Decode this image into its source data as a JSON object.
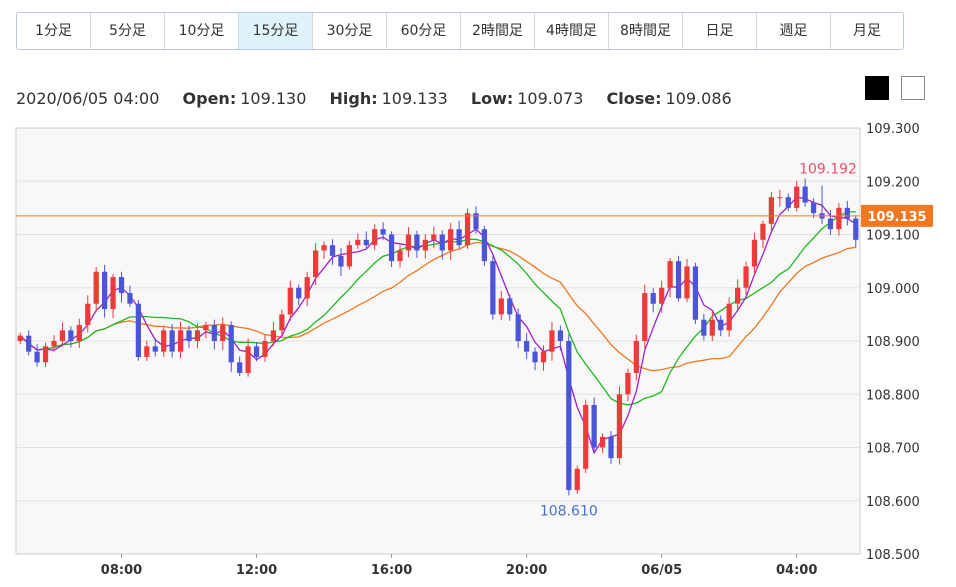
{
  "timeframes": [
    {
      "label": "1分足",
      "active": false
    },
    {
      "label": "5分足",
      "active": false
    },
    {
      "label": "10分足",
      "active": false
    },
    {
      "label": "15分足",
      "active": true
    },
    {
      "label": "30分足",
      "active": false
    },
    {
      "label": "60分足",
      "active": false
    },
    {
      "label": "2時間足",
      "active": false
    },
    {
      "label": "4時間足",
      "active": false
    },
    {
      "label": "8時間足",
      "active": false
    },
    {
      "label": "日足",
      "active": false
    },
    {
      "label": "週足",
      "active": false
    },
    {
      "label": "月足",
      "active": false
    }
  ],
  "ohlc": {
    "datetime": "2020/06/05 04:00",
    "open_label": "Open:",
    "open": "109.130",
    "high_label": "High:",
    "high": "109.133",
    "low_label": "Low:",
    "low": "109.073",
    "close_label": "Close:",
    "close": "109.086"
  },
  "theme_icons": [
    "dark-theme-swatch",
    "light-theme-swatch"
  ],
  "chart_data": {
    "type": "candlestick",
    "ylim": [
      108.5,
      109.3
    ],
    "yticks": [
      "109.300",
      "109.200",
      "109.100",
      "109.000",
      "108.900",
      "108.800",
      "108.700",
      "108.600",
      "108.500"
    ],
    "xticks": [
      {
        "label": "08:00",
        "index": 12
      },
      {
        "label": "12:00",
        "index": 28
      },
      {
        "label": "16:00",
        "index": 44
      },
      {
        "label": "20:00",
        "index": 60
      },
      {
        "label": "06/05",
        "index": 76
      },
      {
        "label": "04:00",
        "index": 92
      }
    ],
    "current_price": {
      "value": 109.135,
      "label": "109.135"
    },
    "high_annotation": {
      "value": 109.192,
      "label": "109.192",
      "index": 95
    },
    "low_annotation": {
      "value": 108.61,
      "label": "108.610",
      "index": 65
    },
    "colors": {
      "up": "#ee3a3a",
      "down": "#4a55d8",
      "ma_short": "#a020d0",
      "ma_mid": "#20b820",
      "ma_long": "#f07820",
      "current": "#f07820",
      "grid": "#e2e2e2",
      "plot_bg": "#f8f8f8"
    },
    "close": [
      108.91,
      108.88,
      108.86,
      108.89,
      108.9,
      108.92,
      108.9,
      108.93,
      108.97,
      109.03,
      108.96,
      109.02,
      108.99,
      108.97,
      108.87,
      108.89,
      108.88,
      108.92,
      108.88,
      108.92,
      108.9,
      108.92,
      108.93,
      108.9,
      108.93,
      108.86,
      108.84,
      108.89,
      108.87,
      108.9,
      108.92,
      108.95,
      109.0,
      108.98,
      109.02,
      109.07,
      109.08,
      109.06,
      109.04,
      109.08,
      109.09,
      109.08,
      109.11,
      109.1,
      109.05,
      109.07,
      109.1,
      109.07,
      109.09,
      109.1,
      109.07,
      109.11,
      109.08,
      109.14,
      109.11,
      109.05,
      108.95,
      108.98,
      108.95,
      108.9,
      108.88,
      108.86,
      108.88,
      108.92,
      108.9,
      108.62,
      108.66,
      108.78,
      108.7,
      108.72,
      108.68,
      108.8,
      108.84,
      108.9,
      108.99,
      108.97,
      109.0,
      109.05,
      108.98,
      109.04,
      108.94,
      108.91,
      108.94,
      108.92,
      108.97,
      109.0,
      109.04,
      109.09,
      109.12,
      109.17,
      109.17,
      109.15,
      109.19,
      109.16,
      109.14,
      109.13,
      109.11,
      109.15,
      109.13,
      109.09
    ]
  }
}
